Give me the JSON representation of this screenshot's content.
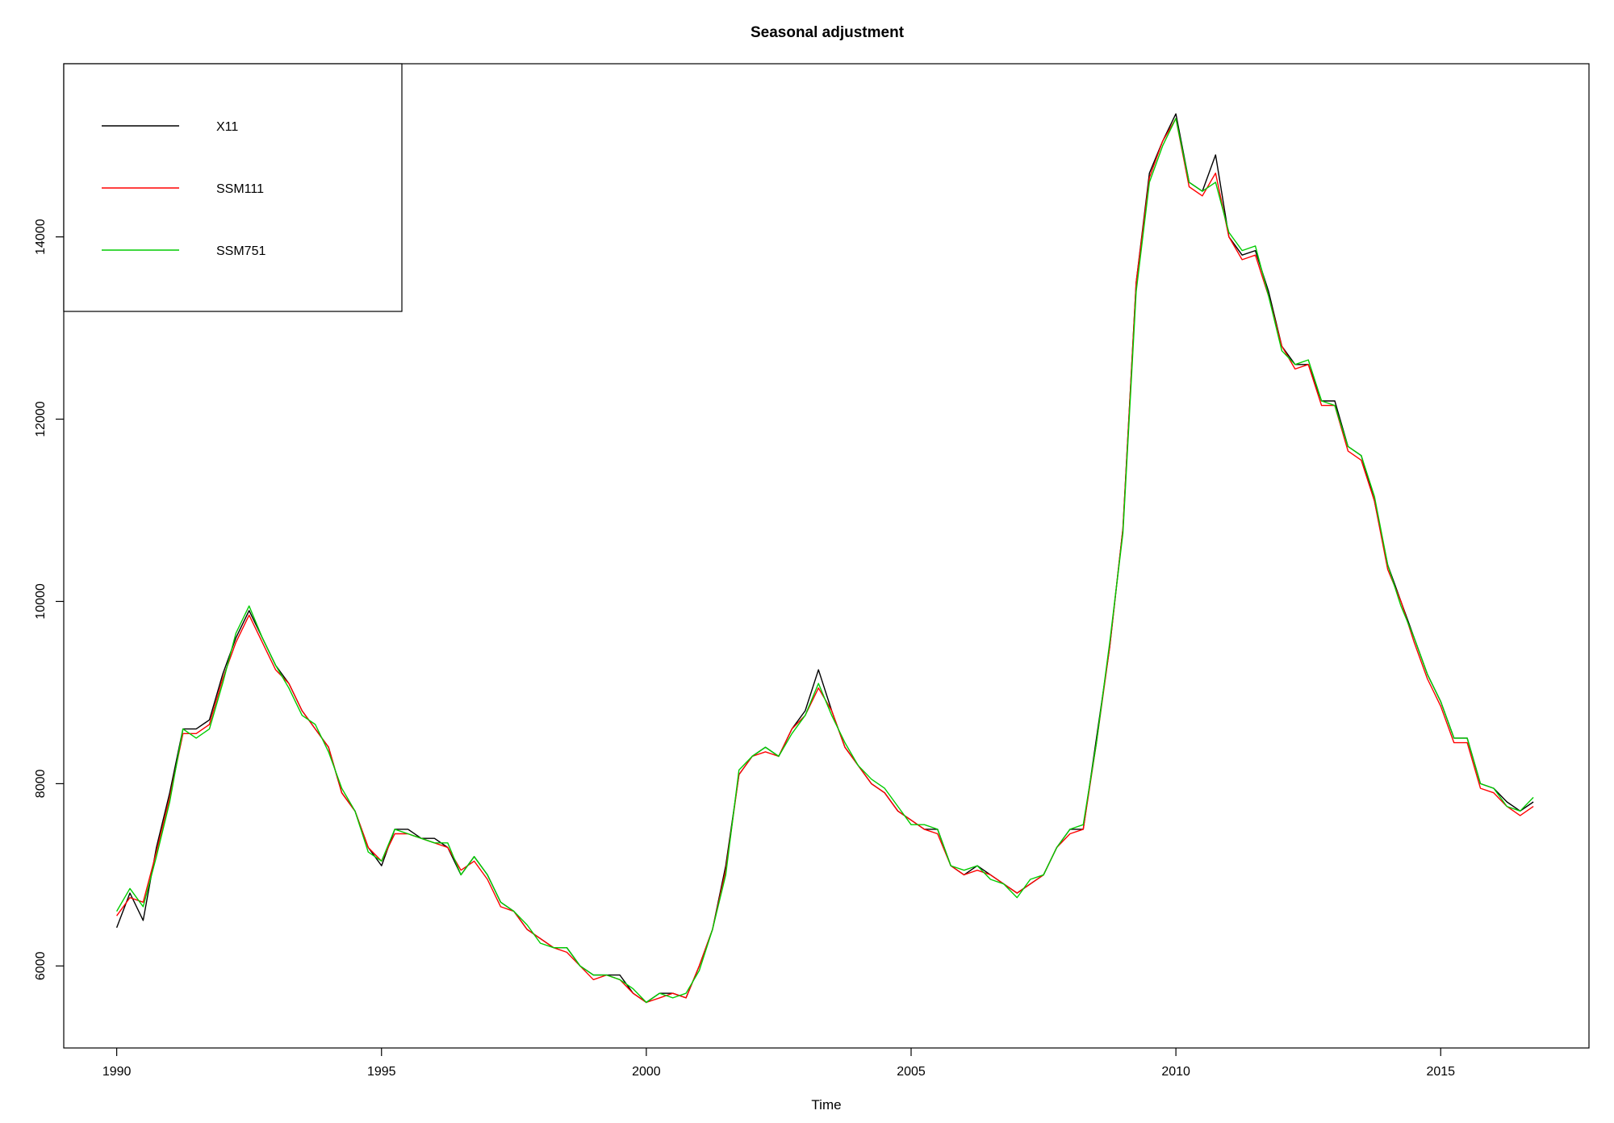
{
  "chart_data": {
    "type": "line",
    "title": "Seasonal adjustment",
    "xlabel": "Time",
    "ylabel": "",
    "xlim": [
      1989.0,
      2017.8
    ],
    "ylim": [
      5100,
      15900
    ],
    "xticks": [
      1990,
      1995,
      2000,
      2005,
      2010,
      2015
    ],
    "yticks": [
      6000,
      8000,
      10000,
      12000,
      14000
    ],
    "legend_position": "top-left",
    "grid": false,
    "x": [
      1990.0,
      1990.25,
      1990.5,
      1990.75,
      1991.0,
      1991.25,
      1991.5,
      1991.75,
      1992.0,
      1992.25,
      1992.5,
      1992.75,
      1993.0,
      1993.25,
      1993.5,
      1993.75,
      1994.0,
      1994.25,
      1994.5,
      1994.75,
      1995.0,
      1995.25,
      1995.5,
      1995.75,
      1996.0,
      1996.25,
      1996.5,
      1996.75,
      1997.0,
      1997.25,
      1997.5,
      1997.75,
      1998.0,
      1998.25,
      1998.5,
      1998.75,
      1999.0,
      1999.25,
      1999.5,
      1999.75,
      2000.0,
      2000.25,
      2000.5,
      2000.75,
      2001.0,
      2001.25,
      2001.5,
      2001.75,
      2002.0,
      2002.25,
      2002.5,
      2002.75,
      2003.0,
      2003.25,
      2003.5,
      2003.75,
      2004.0,
      2004.25,
      2004.5,
      2004.75,
      2005.0,
      2005.25,
      2005.5,
      2005.75,
      2006.0,
      2006.25,
      2006.5,
      2006.75,
      2007.0,
      2007.25,
      2007.5,
      2007.75,
      2008.0,
      2008.25,
      2008.5,
      2008.75,
      2009.0,
      2009.25,
      2009.5,
      2009.75,
      2010.0,
      2010.25,
      2010.5,
      2010.75,
      2011.0,
      2011.25,
      2011.5,
      2011.75,
      2012.0,
      2012.25,
      2012.5,
      2012.75,
      2013.0,
      2013.25,
      2013.5,
      2013.75,
      2014.0,
      2014.25,
      2014.5,
      2014.75,
      2015.0,
      2015.25,
      2015.5,
      2015.75,
      2016.0,
      2016.25,
      2016.5,
      2016.75
    ],
    "series": [
      {
        "name": "X11",
        "color": "#000000",
        "values": [
          6420,
          6800,
          6500,
          7300,
          7900,
          8600,
          8600,
          8700,
          9200,
          9600,
          9900,
          9600,
          9300,
          9100,
          8800,
          8600,
          8400,
          7900,
          7700,
          7300,
          7100,
          7500,
          7500,
          7400,
          7400,
          7300,
          7000,
          7200,
          7000,
          6700,
          6600,
          6400,
          6300,
          6200,
          6200,
          6000,
          5900,
          5900,
          5900,
          5700,
          5600,
          5700,
          5700,
          5650,
          6000,
          6400,
          7100,
          8100,
          8300,
          8400,
          8300,
          8600,
          8800,
          9250,
          8800,
          8400,
          8200,
          8000,
          7900,
          7700,
          7600,
          7500,
          7500,
          7100,
          7000,
          7100,
          7000,
          6900,
          6800,
          6900,
          7000,
          7300,
          7500,
          7500,
          8500,
          9500,
          10800,
          13500,
          14700,
          15050,
          15350,
          14600,
          14500,
          14900,
          14000,
          13800,
          13850,
          13400,
          12800,
          12600,
          12600,
          12200,
          12200,
          11700,
          11600,
          11100,
          10400,
          10000,
          9600,
          9200,
          8900,
          8500,
          8500,
          8000,
          7950,
          7800,
          7700,
          7800
        ]
      },
      {
        "name": "SSM111",
        "color": "#ff0000",
        "values": [
          6550,
          6750,
          6700,
          7250,
          7850,
          8550,
          8550,
          8650,
          9150,
          9550,
          9850,
          9550,
          9250,
          9100,
          8800,
          8600,
          8400,
          7900,
          7700,
          7300,
          7150,
          7450,
          7450,
          7400,
          7350,
          7300,
          7050,
          7150,
          6950,
          6650,
          6600,
          6400,
          6300,
          6200,
          6150,
          6000,
          5850,
          5900,
          5850,
          5700,
          5600,
          5650,
          5700,
          5650,
          6000,
          6400,
          7050,
          8100,
          8300,
          8350,
          8300,
          8600,
          8750,
          9050,
          8800,
          8400,
          8200,
          8000,
          7900,
          7700,
          7600,
          7500,
          7450,
          7100,
          7000,
          7050,
          7000,
          6900,
          6800,
          6900,
          7000,
          7300,
          7450,
          7500,
          8450,
          9500,
          10800,
          13500,
          14650,
          15050,
          15300,
          14550,
          14450,
          14700,
          14000,
          13750,
          13800,
          13350,
          12800,
          12550,
          12600,
          12150,
          12150,
          11650,
          11550,
          11100,
          10350,
          10000,
          9550,
          9150,
          8850,
          8450,
          8450,
          7950,
          7900,
          7750,
          7650,
          7750
        ]
      },
      {
        "name": "SSM751",
        "color": "#00cc00",
        "values": [
          6600,
          6850,
          6650,
          7200,
          7800,
          8600,
          8500,
          8600,
          9100,
          9650,
          9950,
          9600,
          9300,
          9050,
          8750,
          8650,
          8350,
          7950,
          7700,
          7250,
          7150,
          7500,
          7450,
          7400,
          7350,
          7350,
          7000,
          7200,
          7000,
          6700,
          6600,
          6450,
          6250,
          6200,
          6200,
          6000,
          5900,
          5900,
          5850,
          5750,
          5600,
          5700,
          5650,
          5700,
          5950,
          6400,
          7000,
          8150,
          8300,
          8400,
          8300,
          8550,
          8750,
          9100,
          8750,
          8450,
          8200,
          8050,
          7950,
          7750,
          7550,
          7550,
          7500,
          7100,
          7050,
          7100,
          6950,
          6900,
          6750,
          6950,
          7000,
          7300,
          7500,
          7550,
          8450,
          9550,
          10750,
          13400,
          14600,
          15000,
          15300,
          14600,
          14500,
          14600,
          14050,
          13850,
          13900,
          13350,
          12750,
          12600,
          12650,
          12200,
          12150,
          11700,
          11600,
          11150,
          10400,
          9950,
          9600,
          9200,
          8900,
          8500,
          8500,
          8000,
          7950,
          7750,
          7700,
          7850
        ]
      }
    ]
  }
}
